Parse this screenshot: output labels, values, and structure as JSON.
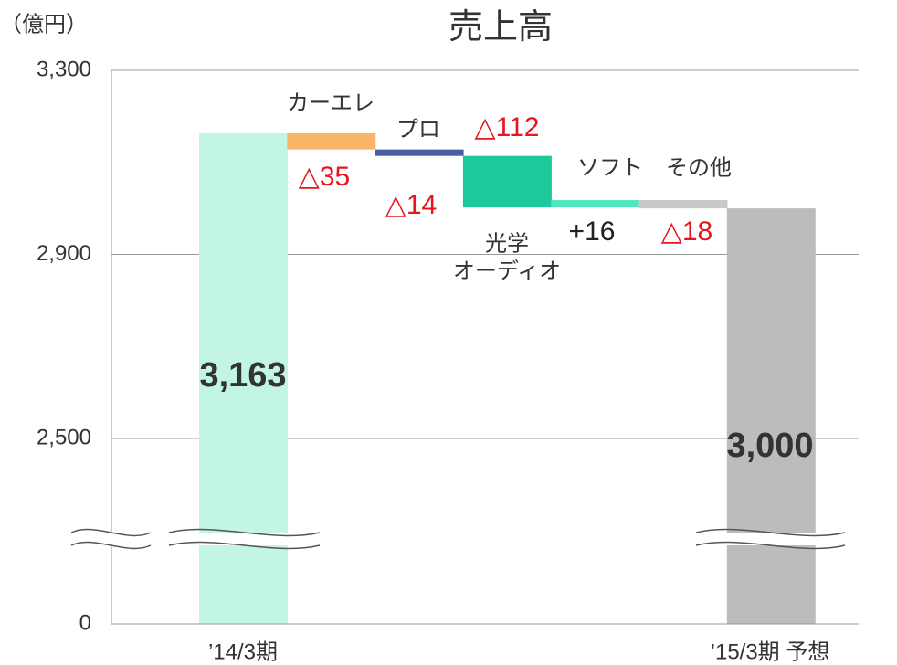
{
  "chart_data": {
    "type": "waterfall",
    "title": "売上高",
    "y_label": "（億円）",
    "categories": [
      "’14/3期",
      "カーエレ",
      "プロ",
      [
        "光学",
        "オーディオ"
      ],
      "ソフト",
      "その他",
      "’15/3期 予想"
    ],
    "kinds": [
      "total",
      "delta",
      "delta",
      "delta",
      "delta",
      "delta",
      "total"
    ],
    "values": [
      3163,
      -35,
      -14,
      -112,
      16,
      -18,
      3000
    ],
    "value_labels": [
      "3,163",
      "△35",
      "△14",
      "△112",
      "+16",
      "△18",
      "3,000"
    ],
    "colors": [
      "#c2f5e6",
      "#f9b46a",
      "#4a5d9e",
      "#1dc99a",
      "#4de8c0",
      "#c8c8cc",
      "#bbbcbe"
    ],
    "ylim": [
      0,
      3300
    ],
    "axis_break": [
      0,
      2500
    ],
    "yticks": [
      0,
      {
        "value": 2500,
        "label": "2,500"
      },
      {
        "value": 2900,
        "label": "2,900"
      },
      {
        "value": 3300,
        "label": "3,300"
      }
    ],
    "grid": true
  }
}
